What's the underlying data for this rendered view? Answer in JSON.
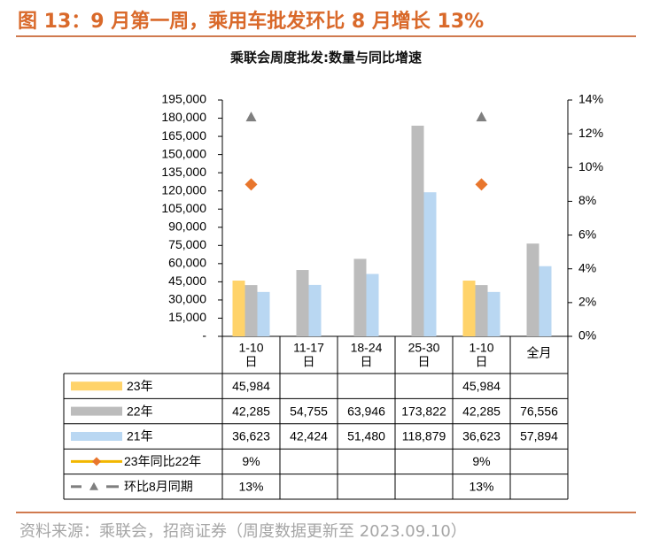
{
  "figure_title": "图 13：9 月第一周，乘用车批发环比 8 月增长 13%",
  "source": "资料来源：乘联会，招商证券（周度数据更新至 2023.09.10）",
  "colors": {
    "title": "#d9692a",
    "rule": "#d07a4f",
    "s23": "#ffd36a",
    "s22": "#bcbcbc",
    "s21": "#b9d7f2",
    "yoy": "#e8762d",
    "mom": "#7f7f7f"
  },
  "chart_data": {
    "type": "bar",
    "title": "乘联会周度批发:数量与同比增速",
    "categories": [
      "1-10日",
      "11-17日",
      "18-24日",
      "25-30日",
      "1-10日",
      "全月"
    ],
    "y_ticks": [
      "-",
      "15,000",
      "30,000",
      "45,000",
      "60,000",
      "75,000",
      "90,000",
      "105,000",
      "120,000",
      "135,000",
      "150,000",
      "165,000",
      "180,000",
      "195,000"
    ],
    "y2_ticks": [
      "0%",
      "2%",
      "4%",
      "6%",
      "8%",
      "10%",
      "12%",
      "14%"
    ],
    "ylim": [
      0,
      195000
    ],
    "y2lim": [
      0,
      14
    ],
    "series": [
      {
        "name": "23年",
        "kind": "bar",
        "color_key": "s23",
        "values": [
          45984,
          null,
          null,
          null,
          45984,
          null
        ],
        "labels": [
          "45,984",
          "",
          "",
          "",
          "45,984",
          ""
        ]
      },
      {
        "name": "22年",
        "kind": "bar",
        "color_key": "s22",
        "values": [
          42285,
          54755,
          63946,
          173822,
          42285,
          76556
        ],
        "labels": [
          "42,285",
          "54,755",
          "63,946",
          "173,822",
          "42,285",
          "76,556"
        ]
      },
      {
        "name": "21年",
        "kind": "bar",
        "color_key": "s21",
        "values": [
          36623,
          42424,
          51480,
          118879,
          36623,
          57894
        ],
        "labels": [
          "36,623",
          "42,424",
          "51,480",
          "118,879",
          "36,623",
          "57,894"
        ]
      },
      {
        "name": "23年同比22年",
        "kind": "marker",
        "marker": "diamond",
        "axis": "right",
        "color_key": "yoy",
        "values": [
          9,
          null,
          null,
          null,
          9,
          null
        ],
        "labels": [
          "9%",
          "",
          "",
          "",
          "9%",
          ""
        ]
      },
      {
        "name": "环比8月同期",
        "kind": "marker",
        "marker": "triangle",
        "axis": "right",
        "color_key": "mom",
        "values": [
          13,
          null,
          null,
          null,
          13,
          null
        ],
        "labels": [
          "13%",
          "",
          "",
          "",
          "13%",
          ""
        ]
      }
    ]
  }
}
